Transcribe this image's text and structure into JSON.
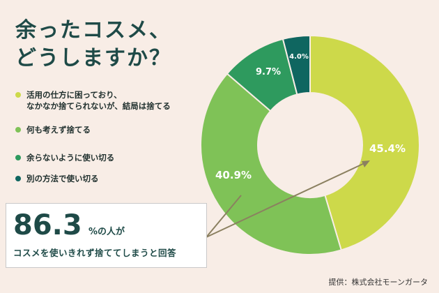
{
  "title": {
    "line1": "余ったコスメ、",
    "line2": "どうしますか？"
  },
  "legend": [
    {
      "lines": [
        "活用の仕方に困っており、",
        "なかなか捨てられないが、結局は捨てる"
      ],
      "color": "#cdd94a"
    },
    {
      "lines": [
        "何も考えず捨てる"
      ],
      "color": "#7fc257"
    },
    {
      "lines": [
        "余らないように使い切る"
      ],
      "color": "#2e9a5e"
    },
    {
      "lines": [
        "別の方法で使い切る"
      ],
      "color": "#0f6660"
    }
  ],
  "chart_data": {
    "type": "pie",
    "donut": true,
    "title": "",
    "categories": [
      "活用の仕方に困っており、なかなか捨てられないが、結局は捨てる",
      "何も考えず捨てる",
      "余らないように使い切る",
      "別の方法で使い切る"
    ],
    "values": [
      45.4,
      40.9,
      9.7,
      4.0
    ],
    "labels": [
      "45.4%",
      "40.9%",
      "9.7%",
      "4.0%"
    ],
    "colors": [
      "#cdd94a",
      "#7fc257",
      "#2e9a5e",
      "#0f6660"
    ]
  },
  "callout": {
    "big": "86.3",
    "suffix": "%の人が",
    "sub": "コスメを使いきれず捨ててしまうと回答"
  },
  "credit": "提供：株式会社モーンガータ"
}
